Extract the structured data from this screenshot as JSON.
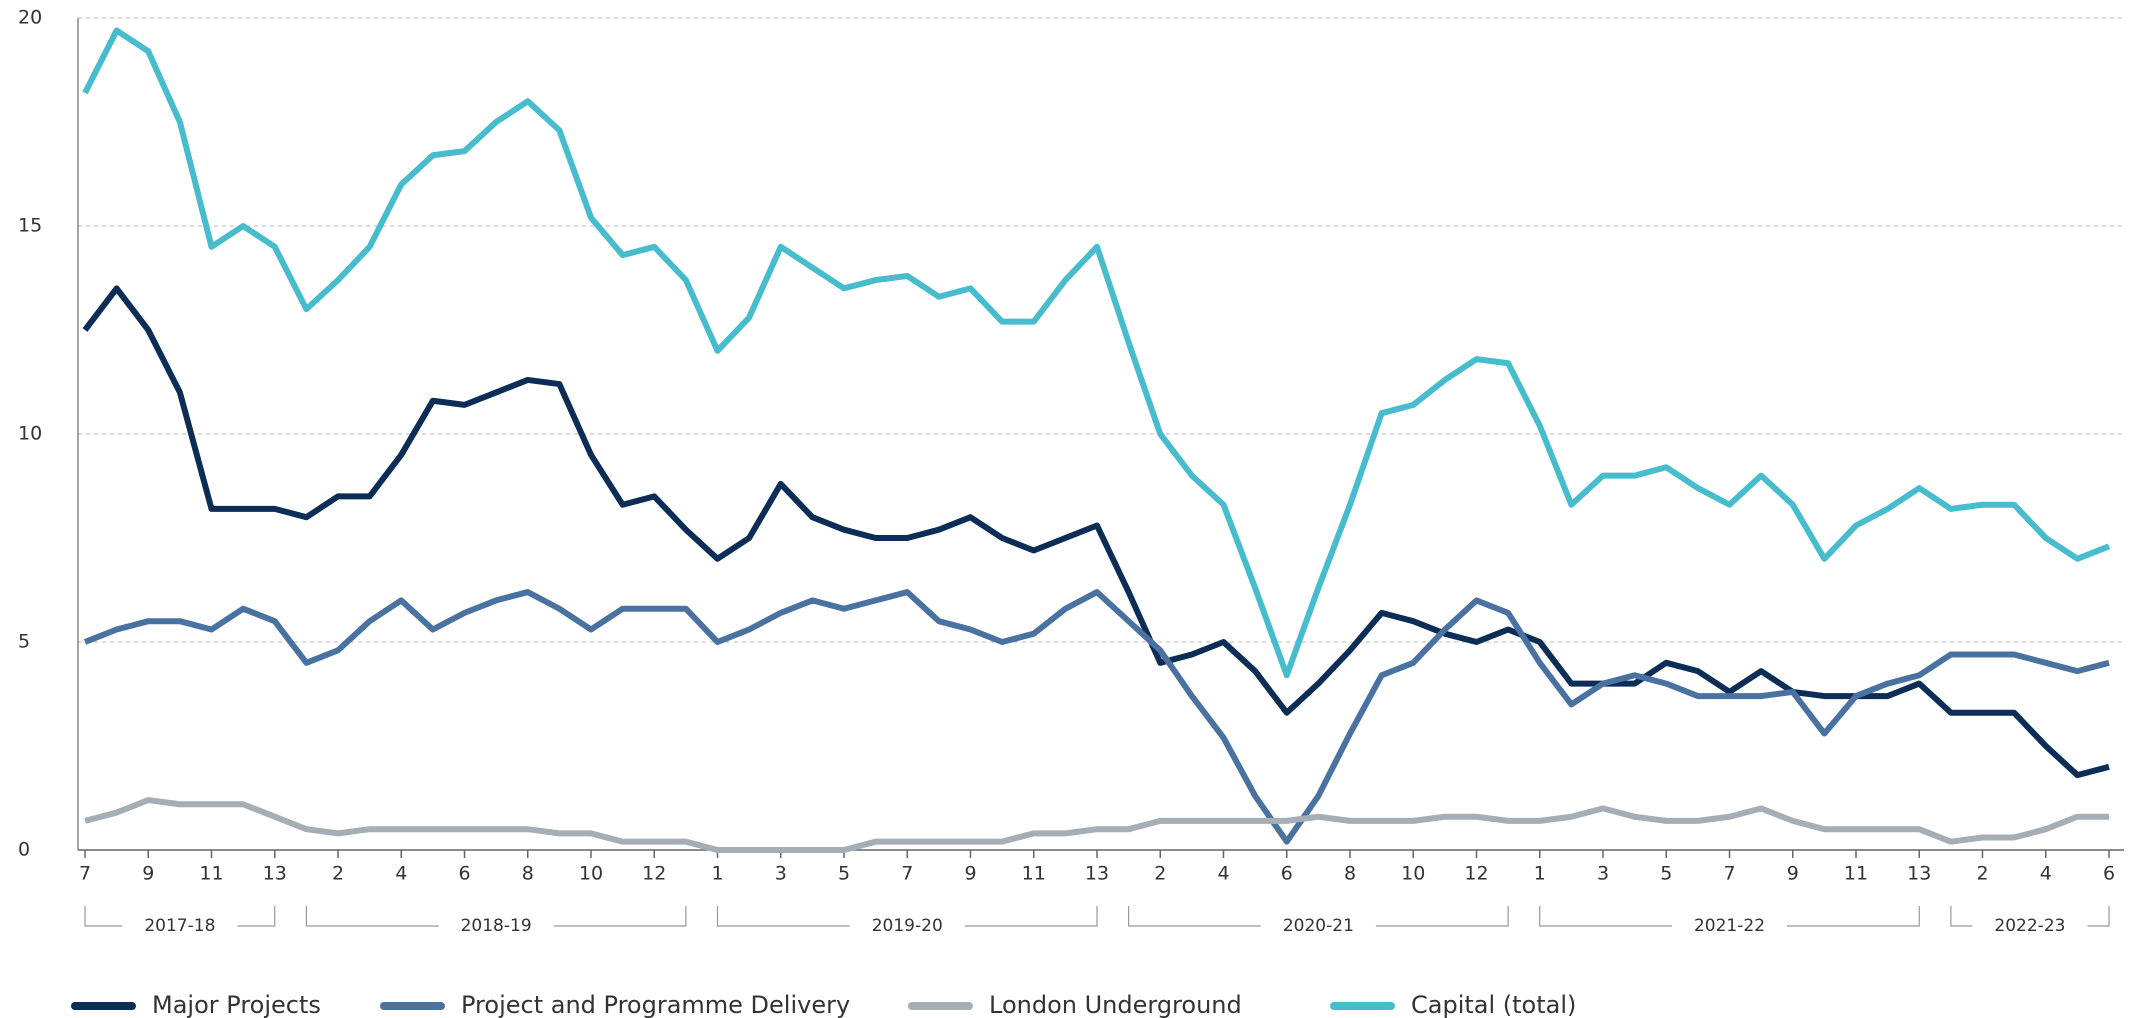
{
  "chart_data": {
    "type": "line",
    "categories": [
      "7",
      null,
      "9",
      null,
      "11",
      null,
      "13",
      null,
      "2",
      null,
      "4",
      null,
      "6",
      null,
      "8",
      null,
      "10",
      null,
      "12",
      null,
      "1",
      null,
      "3",
      null,
      "5",
      null,
      "7",
      null,
      "9",
      null,
      "11",
      null,
      "13",
      null,
      "2",
      null,
      "4",
      null,
      "6",
      null,
      "8",
      null,
      "10",
      null,
      "12",
      null,
      "1",
      null,
      "3",
      null,
      "5",
      null,
      "7",
      null,
      "9",
      null,
      "11",
      null,
      "13",
      null,
      "2",
      null,
      "4",
      null,
      "6"
    ],
    "groups": [
      {
        "label": "2017-18",
        "size": 7
      },
      {
        "label": "2018-19",
        "size": 13
      },
      {
        "label": "2019-20",
        "size": 13
      },
      {
        "label": "2020-21",
        "size": 13
      },
      {
        "label": "2021-22",
        "size": 13
      },
      {
        "label": "2022-23",
        "size": 6
      }
    ],
    "series": [
      {
        "name": "Major Projects",
        "color": "#0b2d56",
        "values": [
          12.5,
          13.5,
          12.5,
          11,
          8.2,
          8.2,
          8.2,
          8,
          8.5,
          8.5,
          9.5,
          10.8,
          10.7,
          11,
          11.3,
          11.2,
          9.5,
          8.3,
          8.5,
          7.7,
          7,
          7.5,
          8.8,
          8,
          7.7,
          7.5,
          7.5,
          7.7,
          8,
          7.5,
          7.2,
          7.5,
          7.8,
          6.2,
          4.5,
          4.7,
          5,
          4.3,
          3.3,
          4,
          4.8,
          5.7,
          5.5,
          5.2,
          5,
          5.3,
          5,
          4,
          4,
          4,
          4.5,
          4.3,
          3.8,
          4.3,
          3.8,
          3.7,
          3.7,
          3.7,
          4,
          3.3,
          3.3,
          3.3,
          2.5,
          1.8,
          2
        ]
      },
      {
        "name": "Project and Programme Delivery",
        "color": "#4a72a0",
        "values": [
          5,
          5.3,
          5.5,
          5.5,
          5.3,
          5.8,
          5.5,
          4.5,
          4.8,
          5.5,
          6,
          5.3,
          5.7,
          6,
          6.2,
          5.8,
          5.3,
          5.8,
          5.8,
          5.8,
          5,
          5.3,
          5.7,
          6,
          5.8,
          6,
          6.2,
          5.5,
          5.3,
          5,
          5.2,
          5.8,
          6.2,
          5.5,
          4.8,
          3.7,
          2.7,
          1.3,
          0.2,
          1.3,
          2.8,
          4.2,
          4.5,
          5.3,
          6,
          5.7,
          4.5,
          3.5,
          4,
          4.2,
          4,
          3.7,
          3.7,
          3.7,
          3.8,
          2.8,
          3.7,
          4,
          4.2,
          4.7,
          4.7,
          4.7,
          4.5,
          4.3,
          4.5
        ]
      },
      {
        "name": "London Underground",
        "color": "#a4aeb4",
        "values": [
          0.7,
          0.9,
          1.2,
          1.1,
          1.1,
          1.1,
          0.8,
          0.5,
          0.4,
          0.5,
          0.5,
          0.5,
          0.5,
          0.5,
          0.5,
          0.4,
          0.4,
          0.2,
          0.2,
          0.2,
          0,
          0,
          0,
          0,
          0,
          0.2,
          0.2,
          0.2,
          0.2,
          0.2,
          0.4,
          0.4,
          0.5,
          0.5,
          0.7,
          0.7,
          0.7,
          0.7,
          0.7,
          0.8,
          0.7,
          0.7,
          0.7,
          0.8,
          0.8,
          0.7,
          0.7,
          0.8,
          1,
          0.8,
          0.7,
          0.7,
          0.8,
          1,
          0.7,
          0.5,
          0.5,
          0.5,
          0.5,
          0.2,
          0.3,
          0.3,
          0.5,
          0.8,
          0.8
        ]
      },
      {
        "name": "Capital (total)",
        "color": "#47bccc",
        "values": [
          18.2,
          19.7,
          19.2,
          17.5,
          14.5,
          15,
          14.5,
          13,
          13.7,
          14.5,
          16,
          16.7,
          16.8,
          17.5,
          18,
          17.3,
          15.2,
          14.3,
          14.5,
          13.7,
          12,
          12.8,
          14.5,
          14,
          13.5,
          13.7,
          13.8,
          13.3,
          13.5,
          12.7,
          12.7,
          13.7,
          14.5,
          12.2,
          10,
          9,
          8.3,
          6.3,
          4.2,
          6.3,
          8.3,
          10.5,
          10.7,
          11.3,
          11.8,
          11.7,
          10.2,
          8.3,
          9,
          9,
          9.2,
          8.7,
          8.3,
          9,
          8.3,
          7,
          7.8,
          8.2,
          8.7,
          8.2,
          8.3,
          8.3,
          7.5,
          7,
          7.3
        ]
      }
    ],
    "ylim": [
      0,
      20
    ],
    "yticks": [
      0,
      5,
      10,
      15,
      20
    ],
    "grid": true,
    "legend": "bottom"
  }
}
